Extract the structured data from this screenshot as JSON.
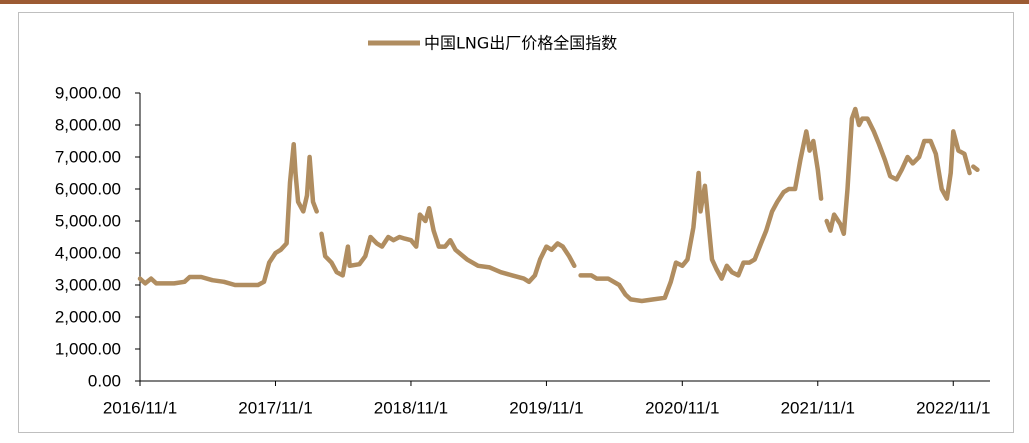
{
  "chart_data": {
    "type": "line",
    "series": [
      {
        "name": "中国LNG出厂价格全国指数",
        "color": "#b08d60",
        "values": [
          3200,
          3050,
          3200,
          3050,
          3050,
          3050,
          3100,
          3250,
          3250,
          3150,
          3100,
          3000,
          3000,
          3000,
          3100,
          3700,
          4000,
          4100,
          4300,
          6200,
          7400,
          6500,
          5600,
          5300,
          5800,
          7000,
          5600,
          5300,
          null,
          4600,
          3900,
          3700,
          3400,
          3300,
          4200,
          3600,
          3650,
          3900,
          4500,
          4300,
          4200,
          4500,
          4400,
          4500,
          4450,
          4400,
          4200,
          5200,
          5000,
          5400,
          4700,
          4200,
          4200,
          4400,
          4100,
          3800,
          3600,
          3550,
          3400,
          3300,
          3200,
          3100,
          3300,
          3800,
          4200,
          4100,
          4300,
          4200,
          3900,
          3600,
          null,
          3300,
          3300,
          3200,
          3200,
          3000,
          2700,
          2550,
          2500,
          2550,
          2600,
          3100,
          3700,
          3600,
          3800,
          4800,
          6500,
          5300,
          6100,
          5000,
          3800,
          3500,
          3200,
          3600,
          3400,
          3300,
          3700,
          3700,
          3800,
          4300,
          4700,
          5300,
          5600,
          5900,
          6000,
          6000,
          6900,
          7800,
          7200,
          7500,
          6600,
          5700,
          null,
          5000,
          4700,
          5200,
          4900,
          4600,
          6000,
          8200,
          8500,
          8000,
          8200,
          8200,
          7800,
          7400,
          6900,
          6400,
          6300,
          6600,
          7000,
          6800,
          7000,
          7500,
          7500,
          7100,
          6000,
          5700,
          6500,
          7800,
          7200,
          7100,
          6500,
          null,
          6700,
          6600
        ]
      }
    ],
    "x": [
      "2016/11/1",
      "2016/11/15",
      "2016/12/1",
      "2016/12/15",
      "2017/1/1",
      "2017/2/1",
      "2017/3/1",
      "2017/3/15",
      "2017/4/15",
      "2017/5/15",
      "2017/6/15",
      "2017/7/15",
      "2017/8/15",
      "2017/9/15",
      "2017/10/1",
      "2017/10/15",
      "2017/11/1",
      "2017/11/15",
      "2017/12/1",
      "2017/12/10",
      "2017/12/20",
      "2017/12/25",
      "2018/1/1",
      "2018/1/15",
      "2018/1/25",
      "2018/2/1",
      "2018/2/10",
      "2018/2/20",
      "2018/3/1",
      "2018/3/5",
      "2018/3/15",
      "2018/4/1",
      "2018/4/15",
      "2018/5/1",
      "2018/5/15",
      "2018/5/20",
      "2018/6/15",
      "2018/7/1",
      "2018/7/15",
      "2018/8/1",
      "2018/8/15",
      "2018/9/1",
      "2018/9/15",
      "2018/10/1",
      "2018/10/15",
      "2018/11/1",
      "2018/11/15",
      "2018/11/25",
      "2018/12/10",
      "2018/12/20",
      "2019/1/1",
      "2019/1/15",
      "2019/2/1",
      "2019/2/15",
      "2019/3/1",
      "2019/4/1",
      "2019/5/1",
      "2019/6/1",
      "2019/7/1",
      "2019/8/1",
      "2019/9/1",
      "2019/9/15",
      "2019/10/1",
      "2019/10/15",
      "2019/11/1",
      "2019/11/15",
      "2019/12/1",
      "2019/12/15",
      "2020/1/1",
      "2020/1/15",
      "2020/1/25",
      "2020/2/1",
      "2020/3/1",
      "2020/3/15",
      "2020/4/15",
      "2020/5/15",
      "2020/6/1",
      "2020/6/15",
      "2020/7/15",
      "2020/8/15",
      "2020/9/15",
      "2020/10/1",
      "2020/10/15",
      "2020/11/1",
      "2020/11/15",
      "2020/12/1",
      "2020/12/15",
      "2020/12/20",
      "2021/1/1",
      "2021/1/10",
      "2021/1/20",
      "2021/2/1",
      "2021/2/15",
      "2021/3/1",
      "2021/3/15",
      "2021/4/1",
      "2021/4/15",
      "2021/5/1",
      "2021/5/15",
      "2021/6/1",
      "2021/6/15",
      "2021/7/1",
      "2021/7/15",
      "2021/8/1",
      "2021/8/15",
      "2021/9/1",
      "2021/9/15",
      "2021/10/1",
      "2021/10/10",
      "2021/10/20",
      "2021/11/1",
      "2021/11/10",
      "2021/11/20",
      "2021/11/25",
      "2021/12/5",
      "2021/12/15",
      "2022/1/1",
      "2022/1/10",
      "2022/1/20",
      "2022/2/1",
      "2022/2/10",
      "2022/2/20",
      "2022/3/1",
      "2022/3/15",
      "2022/4/1",
      "2022/4/15",
      "2022/5/1",
      "2022/5/15",
      "2022/6/1",
      "2022/6/15",
      "2022/7/1",
      "2022/7/15",
      "2022/8/1",
      "2022/8/15",
      "2022/9/1",
      "2022/9/15",
      "2022/10/1",
      "2022/10/15",
      "2022/10/25",
      "2022/11/1",
      "2022/11/15",
      "2022/12/1",
      "2022/12/15",
      "2022/12/20",
      "2022/12/25",
      "2023/1/5"
    ],
    "xlim": [
      "2016/11/1",
      "2023/2/8"
    ],
    "xticks": [
      "2016/11/1",
      "2017/11/1",
      "2018/11/1",
      "2019/11/1",
      "2020/11/1",
      "2021/11/1",
      "2022/11/1"
    ],
    "ylim": [
      0,
      9000
    ],
    "yticks": [
      {
        "value": 0,
        "label": "0.00"
      },
      {
        "value": 1000,
        "label": "1,000.00"
      },
      {
        "value": 2000,
        "label": "2,000.00"
      },
      {
        "value": 3000,
        "label": "3,000.00"
      },
      {
        "value": 4000,
        "label": "4,000.00"
      },
      {
        "value": 5000,
        "label": "5,000.00"
      },
      {
        "value": 6000,
        "label": "6,000.00"
      },
      {
        "value": 7000,
        "label": "7,000.00"
      },
      {
        "value": 8000,
        "label": "8,000.00"
      },
      {
        "value": 9000,
        "label": "9,000.00"
      }
    ],
    "legend": "top",
    "grid": false
  }
}
